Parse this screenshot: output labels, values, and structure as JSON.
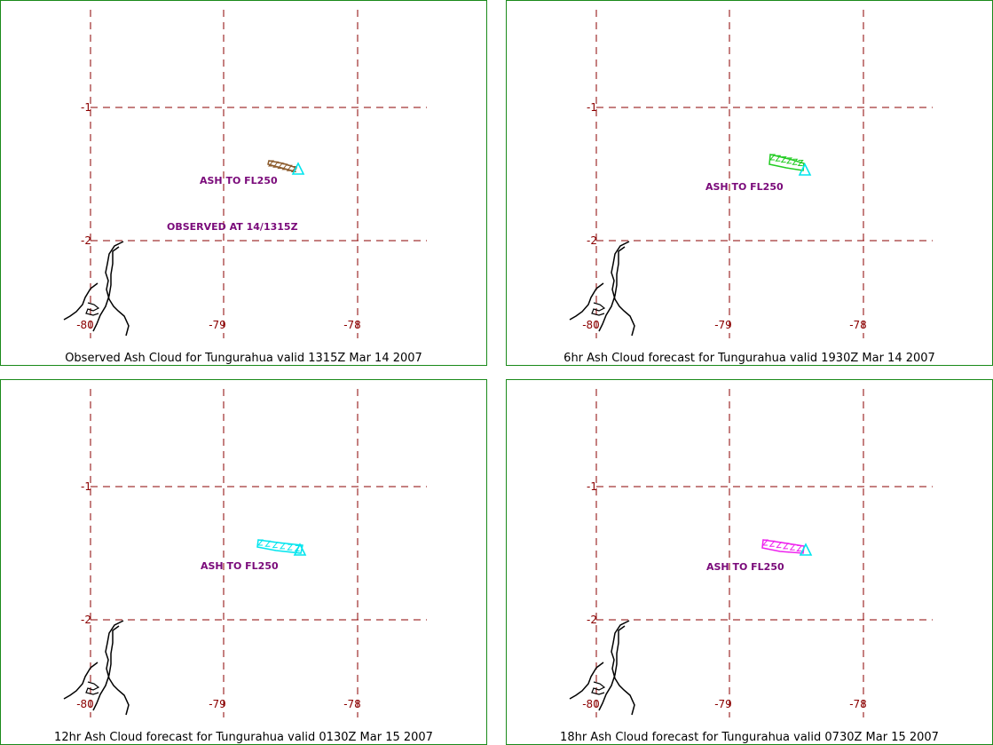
{
  "colors": {
    "grid": "#8b0000",
    "tick_label": "#8b0000",
    "annotation": "#7a0a7a",
    "border": "#1a8a1a",
    "coast": "#000000",
    "volcano": "#00e5ee"
  },
  "panels": [
    {
      "caption": "Observed Ash Cloud for Tungurahua valid 1315Z Mar 14 2007",
      "cloud_color": "#8b5a2b",
      "annotations": [
        "ASH TO FL250",
        "OBSERVED AT 14/1315Z"
      ],
      "lon_labels": [
        "-80",
        "-79",
        "-78"
      ],
      "lat_labels": [
        "-1",
        "-2"
      ]
    },
    {
      "caption": "6hr Ash Cloud forecast for Tungurahua valid 1930Z Mar 14 2007",
      "cloud_color": "#22cc22",
      "annotations": [
        "ASH TO FL250"
      ],
      "lon_labels": [
        "-80",
        "-79",
        "-78"
      ],
      "lat_labels": [
        "-1",
        "-2"
      ]
    },
    {
      "caption": "12hr Ash Cloud forecast for Tungurahua valid 0130Z Mar 15 2007",
      "cloud_color": "#00e5ee",
      "annotations": [
        "ASH TO FL250"
      ],
      "lon_labels": [
        "-80",
        "-79",
        "-78"
      ],
      "lat_labels": [
        "-1",
        "-2"
      ]
    },
    {
      "caption": "18hr Ash Cloud forecast for Tungurahua valid 0730Z Mar 15 2007",
      "cloud_color": "#ee22ee",
      "annotations": [
        "ASH TO FL250"
      ],
      "lon_labels": [
        "-80",
        "-79",
        "-78"
      ],
      "lat_labels": [
        "-1",
        "-2"
      ]
    }
  ]
}
